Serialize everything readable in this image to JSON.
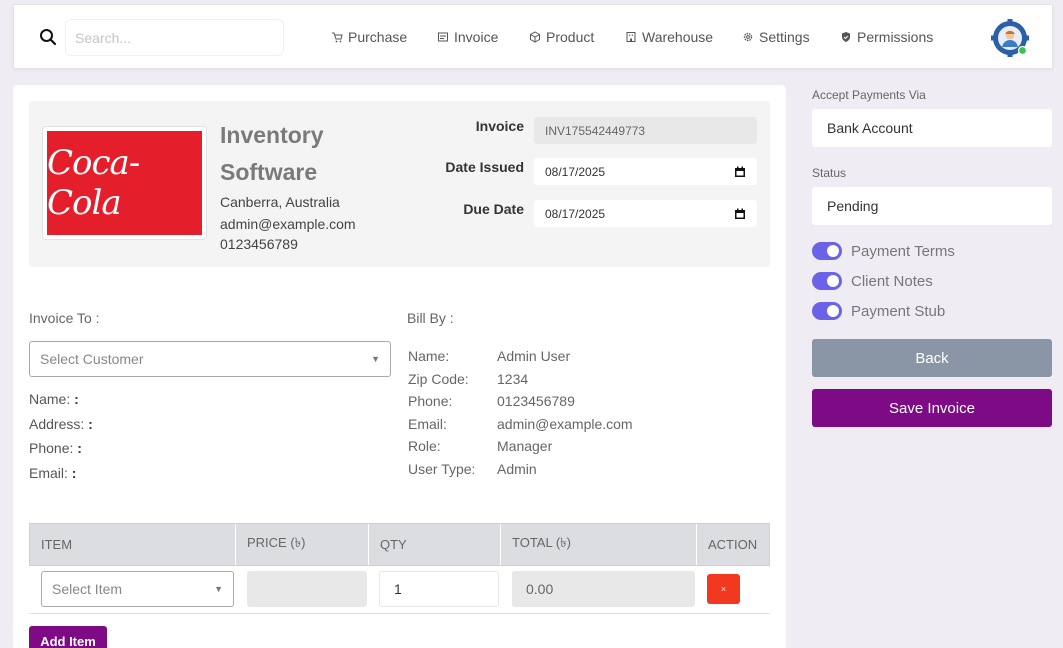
{
  "search": {
    "placeholder": "Search..."
  },
  "nav": [
    {
      "label": "Purchase",
      "icon": "cart-icon"
    },
    {
      "label": "Invoice",
      "icon": "receipt-icon"
    },
    {
      "label": "Product",
      "icon": "box-icon"
    },
    {
      "label": "Warehouse",
      "icon": "building-icon"
    },
    {
      "label": "Settings",
      "icon": "gear-icon"
    },
    {
      "label": "Permissions",
      "icon": "shield-icon"
    }
  ],
  "company": {
    "logo_text": "Coca-Cola",
    "name": "Inventory Software",
    "address": "Canberra, Australia",
    "email": "admin@example.com",
    "phone": "0123456789"
  },
  "invoice": {
    "invoice_label": "Invoice",
    "invoice_number": "INV175542449773",
    "date_issued_label": "Date Issued",
    "date_issued": "08/17/2025",
    "due_date_label": "Due Date",
    "due_date": "08/17/2025"
  },
  "invoice_to": {
    "heading": "Invoice To :",
    "select_placeholder": "Select Customer",
    "fields": [
      "Name:",
      "Address:",
      "Phone:",
      "Email:"
    ],
    "colon": ":"
  },
  "bill_by": {
    "heading": "Bill By :",
    "rows": [
      {
        "key": "Name:",
        "value": "Admin User"
      },
      {
        "key": "Zip Code:",
        "value": "1234"
      },
      {
        "key": "Phone:",
        "value": "0123456789"
      },
      {
        "key": "Email:",
        "value": "admin@example.com"
      },
      {
        "key": "Role:",
        "value": "Manager"
      },
      {
        "key": "User Type:",
        "value": "Admin"
      }
    ]
  },
  "table": {
    "headers": [
      "ITEM",
      "PRICE (৳)",
      "QTY",
      "TOTAL (৳)",
      "ACTION"
    ],
    "row": {
      "item_placeholder": "Select Item",
      "price": "",
      "qty": "1",
      "total": "0.00",
      "delete_label": "×"
    },
    "add_item_label": "Add Item"
  },
  "sidebar": {
    "payment_label": "Accept Payments Via",
    "payment_value": "Bank Account",
    "status_label": "Status",
    "status_value": "Pending",
    "toggles": [
      {
        "label": "Payment Terms",
        "on": true
      },
      {
        "label": "Client Notes",
        "on": true
      },
      {
        "label": "Payment Stub",
        "on": true
      }
    ],
    "back_label": "Back",
    "save_label": "Save Invoice"
  },
  "colors": {
    "primary": "#7e0a86",
    "toggle": "#6a63e9",
    "danger": "#f2391f",
    "back": "#8a96a5",
    "logo_red": "#e41e2b"
  }
}
